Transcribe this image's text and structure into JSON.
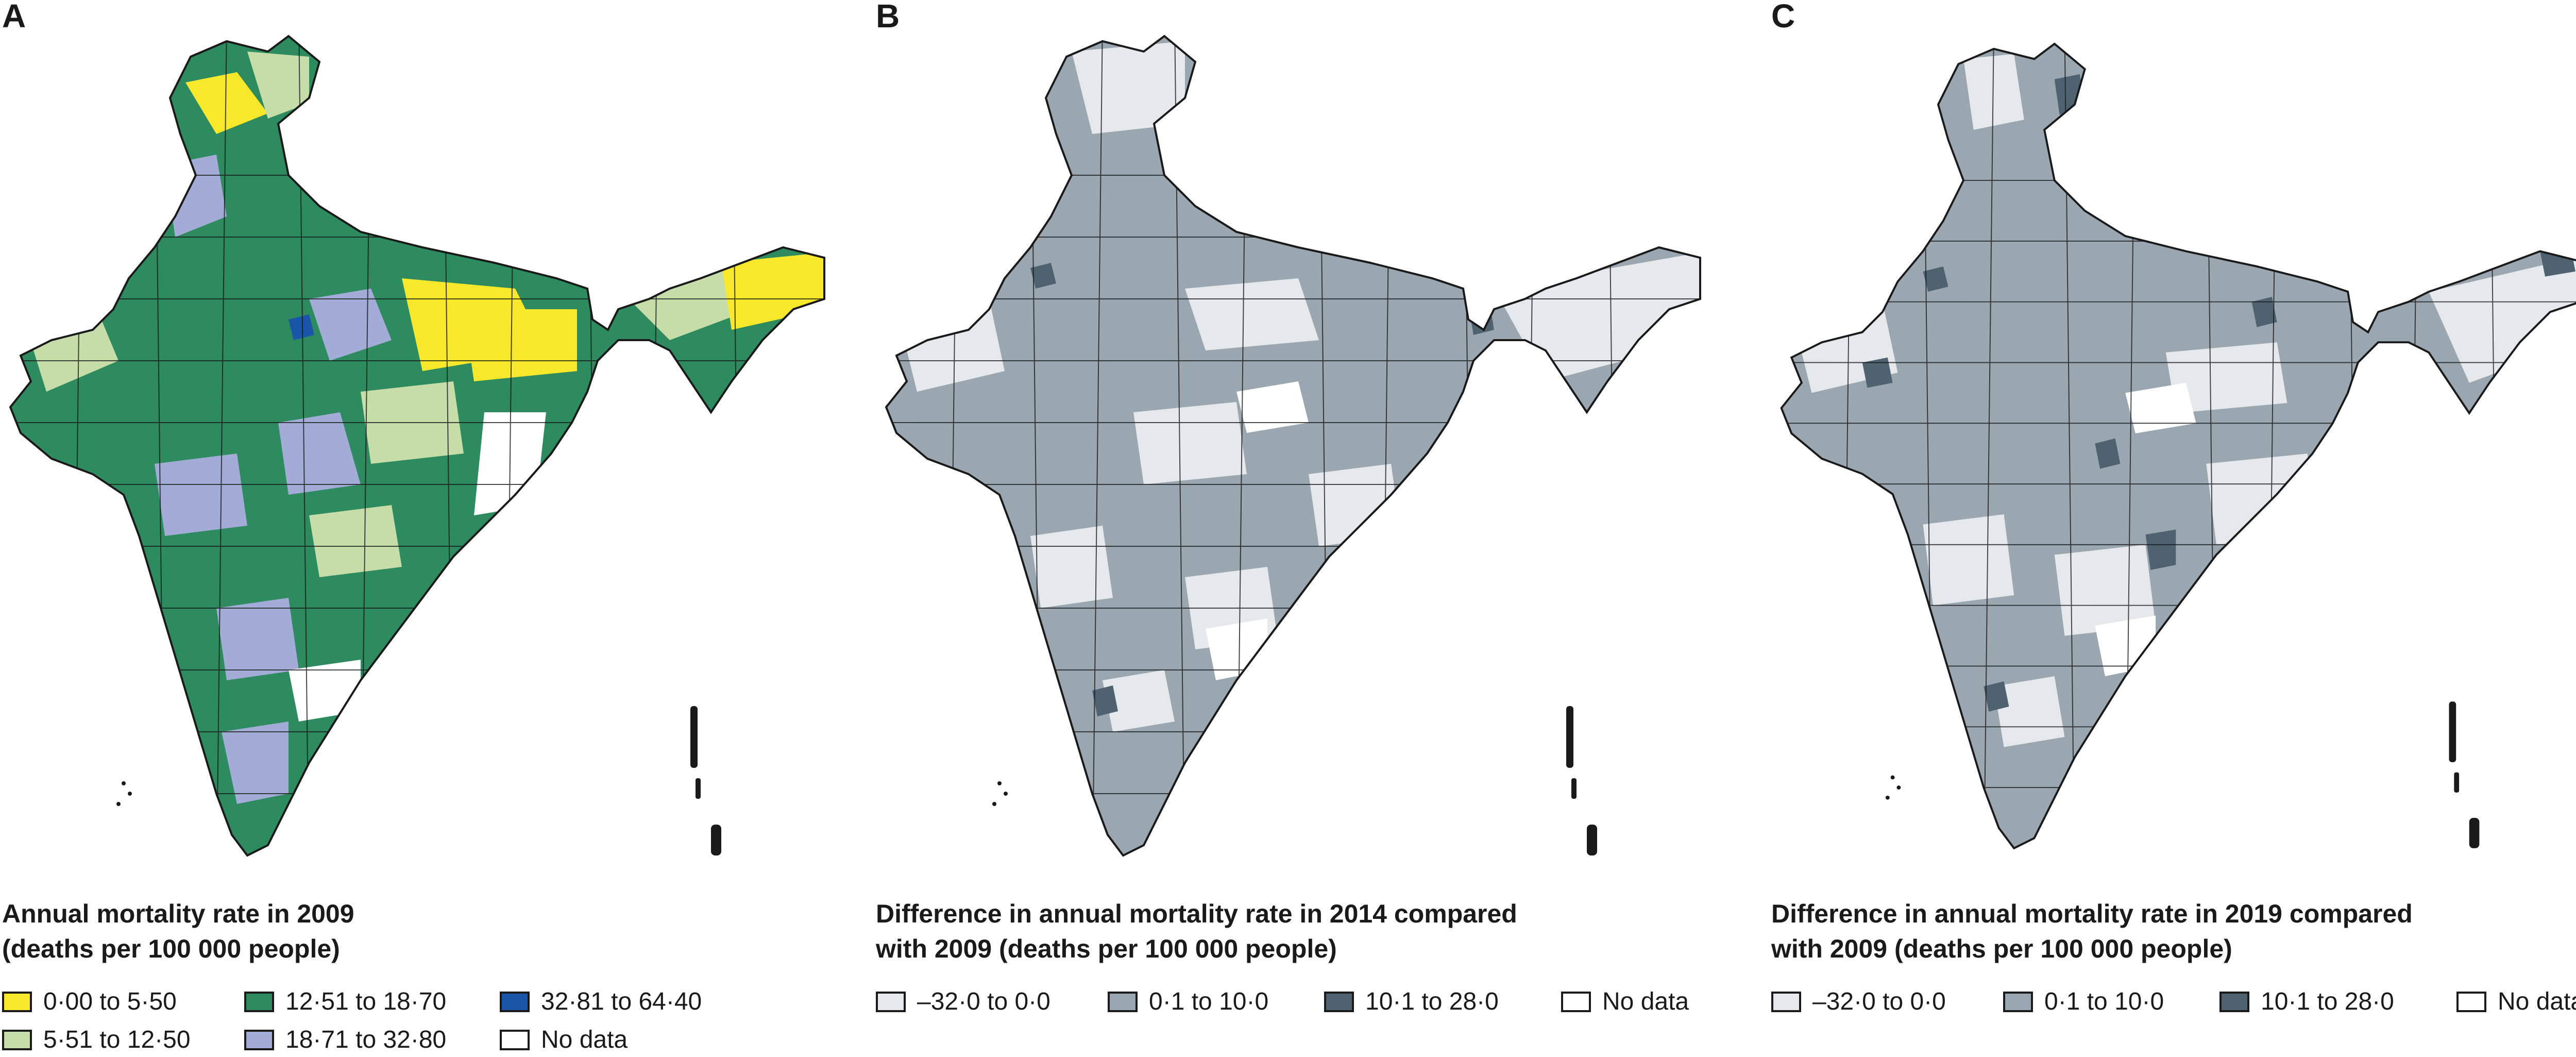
{
  "panels": [
    {
      "letter": "A",
      "legend_title_line1": "Annual mortality rate in 2009",
      "legend_title_line2": "(deaths per 100 000 people)",
      "legend": [
        {
          "label": "0·00 to 5·50",
          "color": "#f7e82b"
        },
        {
          "label": "12·51 to 18·70",
          "color": "#2e8b5f"
        },
        {
          "label": "32·81 to 64·40",
          "color": "#1b55a8"
        },
        {
          "label": "5·51 to 12·50",
          "color": "#c6ddaa"
        },
        {
          "label": "18·71 to 32·80",
          "color": "#a2acd6"
        },
        {
          "label": "No data",
          "color": "#ffffff"
        }
      ]
    },
    {
      "letter": "B",
      "legend_title_line1": "Difference in annual mortality rate in 2014 compared",
      "legend_title_line2": "with 2009 (deaths per 100 000 people)",
      "legend": [
        {
          "label": "–32·0 to 0·0",
          "color": "#e6e9ec"
        },
        {
          "label": "0·1 to 10·0",
          "color": "#9aa6b0"
        },
        {
          "label": "10·1 to 28·0",
          "color": "#4e6270"
        },
        {
          "label": "No data",
          "color": "#ffffff"
        }
      ]
    },
    {
      "letter": "C",
      "legend_title_line1": "Difference in annual mortality rate in 2019 compared",
      "legend_title_line2": "with 2009 (deaths per 100 000 people)",
      "legend": [
        {
          "label": "–32·0 to 0·0",
          "color": "#e6e9ec"
        },
        {
          "label": "0·1 to 10·0",
          "color": "#9aa6b0"
        },
        {
          "label": "10·1 to 28·0",
          "color": "#4e6270"
        },
        {
          "label": "No data",
          "color": "#ffffff"
        }
      ]
    }
  ]
}
